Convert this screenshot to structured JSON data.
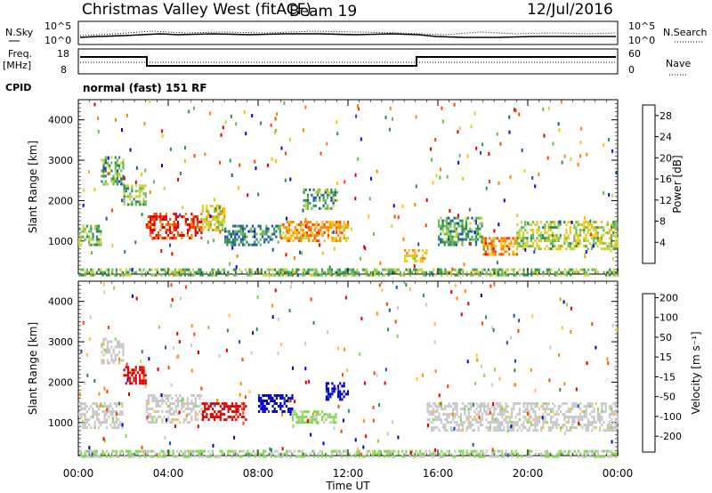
{
  "header": {
    "station": "Christmas Valley West (fitACF)",
    "beam": "Beam 19",
    "date": "12/Jul/2016"
  },
  "noise_panel": {
    "left_label": "N.Sky",
    "right_label": "N.Search",
    "left_ticks": [
      "10^5",
      "10^0"
    ],
    "right_ticks": [
      "10^5",
      "10^0"
    ]
  },
  "freq_panel": {
    "left_label_line1": "Freq.",
    "left_label_line2": "[MHz]",
    "right_label": "Nave",
    "left_ticks": [
      "18",
      "8"
    ],
    "right_ticks": [
      "60",
      "0"
    ]
  },
  "cpid": {
    "label": "CPID",
    "text": "normal (fast) 151 RF"
  },
  "colors": {
    "power_scale": [
      "#0000ff",
      "#1a4fb0",
      "#2e8b57",
      "#66bb55",
      "#c8d43c",
      "#ffbf00",
      "#ff8000",
      "#ff4000",
      "#e00000"
    ],
    "velocity_scale": [
      "#e00000",
      "#ff4000",
      "#ff8c00",
      "#ffbf3f",
      "#c8c8c8",
      "#7fd94f",
      "#2e8b57",
      "#1a4fb0",
      "#0000cc"
    ],
    "frame": "#000000",
    "ground_scatter": "#c0c0c0"
  },
  "chart_data": [
    {
      "type": "heatmap",
      "title": "",
      "xlabel": "",
      "ylabel": "Slant Range [km]",
      "x_ticks": [
        "00:00",
        "04:00",
        "08:00",
        "12:00",
        "16:00",
        "20:00",
        "00:00"
      ],
      "y_ticks": [
        "1000",
        "2000",
        "3000",
        "4000"
      ],
      "ylim": [
        180,
        4500
      ],
      "xlim_hours": [
        0,
        24
      ],
      "colorbar": {
        "label": "Power [dB]",
        "ticks": [
          "4",
          "8",
          "12",
          "16",
          "20",
          "24",
          "28"
        ],
        "range": [
          0,
          30
        ]
      },
      "features": [
        {
          "t0": 0.0,
          "t1": 1.0,
          "r0": 900,
          "r1": 1400,
          "value": 12
        },
        {
          "t0": 1.0,
          "t1": 2.0,
          "r0": 2400,
          "r1": 3100,
          "value": 10
        },
        {
          "t0": 2.0,
          "t1": 3.0,
          "r0": 1900,
          "r1": 2400,
          "value": 12
        },
        {
          "t0": 3.0,
          "t1": 5.5,
          "r0": 1100,
          "r1": 1700,
          "value": 26
        },
        {
          "t0": 5.5,
          "t1": 6.5,
          "r0": 1300,
          "r1": 1900,
          "value": 16
        },
        {
          "t0": 6.5,
          "t1": 9.0,
          "r0": 900,
          "r1": 1400,
          "value": 8
        },
        {
          "t0": 9.0,
          "t1": 12.0,
          "r0": 1000,
          "r1": 1500,
          "value": 20
        },
        {
          "t0": 10.0,
          "t1": 11.5,
          "r0": 1800,
          "r1": 2300,
          "value": 10
        },
        {
          "t0": 14.5,
          "t1": 15.5,
          "r0": 500,
          "r1": 800,
          "value": 18
        },
        {
          "t0": 16.0,
          "t1": 18.0,
          "r0": 900,
          "r1": 1600,
          "value": 10
        },
        {
          "t0": 18.0,
          "t1": 19.5,
          "r0": 700,
          "r1": 1100,
          "value": 22
        },
        {
          "t0": 19.5,
          "t1": 24.0,
          "r0": 800,
          "r1": 1500,
          "value": 14
        },
        {
          "t0": 0.0,
          "t1": 24.0,
          "r0": 180,
          "r1": 320,
          "value": 12
        }
      ]
    },
    {
      "type": "heatmap",
      "title": "",
      "xlabel": "Time UT",
      "ylabel": "Slant Range [km]",
      "x_ticks": [
        "00:00",
        "04:00",
        "08:00",
        "12:00",
        "16:00",
        "20:00",
        "00:00"
      ],
      "y_ticks": [
        "1000",
        "2000",
        "3000",
        "4000"
      ],
      "ylim": [
        180,
        4500
      ],
      "xlim_hours": [
        0,
        24
      ],
      "colorbar": {
        "label": "Velocity [m s⁻¹]",
        "ticks": [
          "-200",
          "-100",
          "-50",
          "-15",
          "15",
          "50",
          "100",
          "200"
        ],
        "range": [
          -250,
          250
        ]
      },
      "features": [
        {
          "t0": 0.0,
          "t1": 2.0,
          "r0": 900,
          "r1": 1500,
          "value": 0
        },
        {
          "t0": 1.0,
          "t1": 2.0,
          "r0": 2500,
          "r1": 3100,
          "value": 0
        },
        {
          "t0": 2.0,
          "t1": 3.0,
          "r0": 2000,
          "r1": 2400,
          "value": -220
        },
        {
          "t0": 3.0,
          "t1": 5.5,
          "r0": 1000,
          "r1": 1700,
          "value": 0
        },
        {
          "t0": 5.5,
          "t1": 7.5,
          "r0": 1100,
          "r1": 1500,
          "value": -220
        },
        {
          "t0": 8.0,
          "t1": 9.5,
          "r0": 1300,
          "r1": 1700,
          "value": 220
        },
        {
          "t0": 9.5,
          "t1": 11.5,
          "r0": 1000,
          "r1": 1300,
          "value": 40
        },
        {
          "t0": 11.0,
          "t1": 12.0,
          "r0": 1600,
          "r1": 2000,
          "value": 220
        },
        {
          "t0": 15.5,
          "t1": 24.0,
          "r0": 800,
          "r1": 1500,
          "value": 0
        },
        {
          "t0": 0.0,
          "t1": 24.0,
          "r0": 180,
          "r1": 320,
          "value": 30
        }
      ]
    }
  ]
}
